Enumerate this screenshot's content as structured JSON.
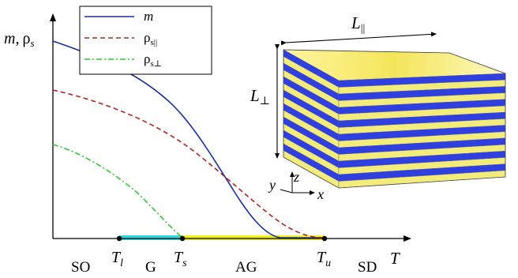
{
  "plot": {
    "ylabel_m": "m",
    "ylabel_sep": ",",
    "ylabel_rho": "ρ",
    "ylabel_rho_sub": "s",
    "xlabel": "T"
  },
  "legend": {
    "items": [
      {
        "label": "m",
        "sub": "",
        "color": "#1a2d9e",
        "dash": "solid"
      },
      {
        "label": "ρ",
        "sub": "s||",
        "color": "#b02323",
        "dash": "dashed"
      },
      {
        "label": "ρ",
        "sub": "s⊥",
        "color": "#2ec92e",
        "dash": "dashdot"
      }
    ]
  },
  "temperatures": {
    "Tl": {
      "main": "T",
      "sub": "l"
    },
    "Ts": {
      "main": "T",
      "sub": "s"
    },
    "Tu": {
      "main": "T",
      "sub": "u"
    }
  },
  "phases": {
    "SO": "SO",
    "G": "G",
    "AG": "AG",
    "SD": "SD"
  },
  "regions": {
    "glass_color": "#33d6dc",
    "anisotropic_glass_color": "#f2f21a"
  },
  "sample": {
    "L_par_main": "L",
    "L_par_sub": "||",
    "L_perp_main": "L",
    "L_perp_sub": "⊥",
    "axes": {
      "x": "x",
      "y": "y",
      "z": "z"
    },
    "layer_colors": [
      "#2f3fe0",
      "#f3ec7a"
    ]
  }
}
